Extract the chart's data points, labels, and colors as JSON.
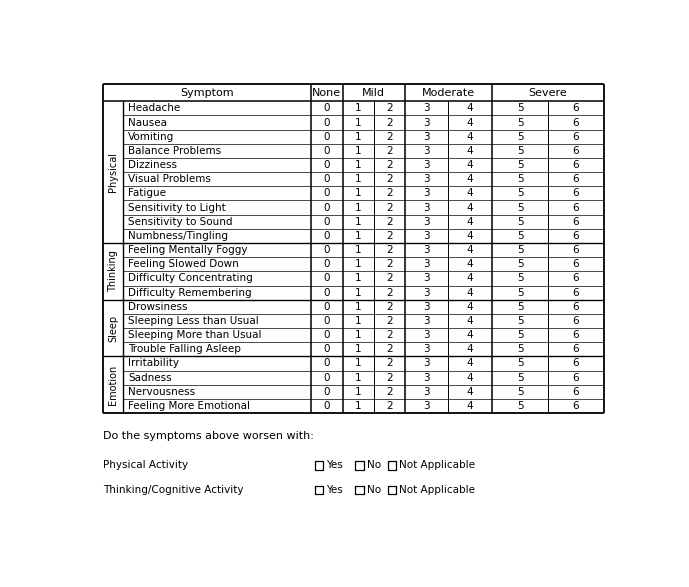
{
  "categories": {
    "Physical": [
      "Headache",
      "Nausea",
      "Vomiting",
      "Balance Problems",
      "Dizziness",
      "Visual Problems",
      "Fatigue",
      "Sensitivity to Light",
      "Sensitivity to Sound",
      "Numbness/Tingling"
    ],
    "Thinking": [
      "Feeling Mentally Foggy",
      "Feeling Slowed Down",
      "Difficulty Concentrating",
      "Difficulty Remembering"
    ],
    "Sleep": [
      "Drowsiness",
      "Sleeping Less than Usual",
      "Sleeping More than Usual",
      "Trouble Falling Asleep"
    ],
    "Emotion": [
      "Irritability",
      "Sadness",
      "Nervousness",
      "Feeling More Emotional"
    ]
  },
  "score_labels": [
    "0",
    "1",
    "2",
    "3",
    "4",
    "5",
    "6"
  ],
  "bottom_text": "Do the symptoms above worsen with:",
  "bottom_items": [
    "Physical Activity",
    "Thinking/Cognitive Activity"
  ],
  "checkbox_options": [
    "Yes",
    "No",
    "Not Applicable"
  ],
  "bg_color": "#ffffff",
  "font_size": 7.5,
  "header_font_size": 8.0,
  "category_font_size": 7.0
}
